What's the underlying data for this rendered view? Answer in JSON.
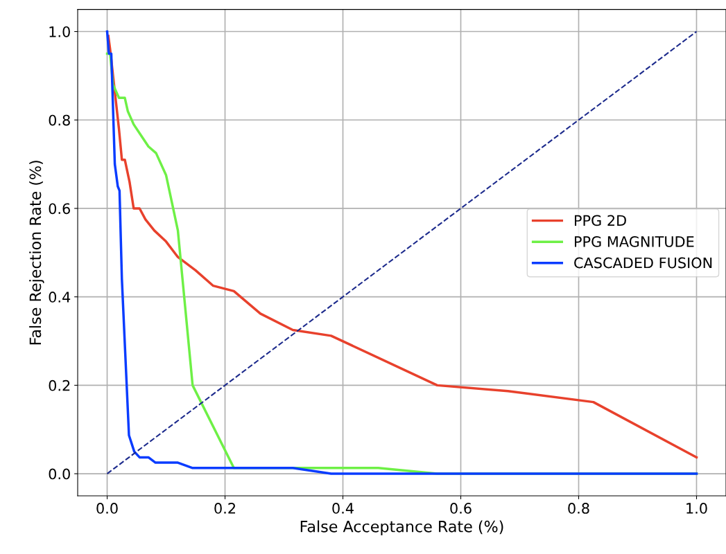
{
  "chart_data": {
    "type": "line",
    "xlabel": "False Acceptance Rate (%)",
    "ylabel": "False Rejection Rate (%)",
    "xlim": [
      -0.05,
      1.05
    ],
    "ylim": [
      -0.05,
      1.05
    ],
    "xticks": [
      {
        "value": 0,
        "label": "0.0"
      },
      0.2,
      0.4,
      0.6,
      0.8,
      {
        "value": 1,
        "label": "1.0"
      }
    ],
    "yticks": [
      {
        "value": 0,
        "label": "0.0"
      },
      0.2,
      0.4,
      0.6,
      0.8,
      {
        "value": 1,
        "label": "1.0"
      }
    ],
    "grid": true,
    "legend": "right",
    "line_style": "solid",
    "marker": "none",
    "series": [
      {
        "name": "PPG 2D",
        "color": "#e8412c",
        "x": [
          0.002,
          0.005,
          0.01,
          0.02,
          0.025,
          0.03,
          0.038,
          0.045,
          0.055,
          0.065,
          0.08,
          0.1,
          0.12,
          0.15,
          0.18,
          0.215,
          0.26,
          0.315,
          0.38,
          0.56,
          0.68,
          0.825,
          1.0
        ],
        "values": [
          0.99,
          0.96,
          0.9,
          0.78,
          0.71,
          0.71,
          0.66,
          0.6,
          0.6,
          0.575,
          0.55,
          0.525,
          0.49,
          0.46,
          0.425,
          0.413,
          0.362,
          0.325,
          0.312,
          0.2,
          0.187,
          0.162,
          0.037
        ]
      },
      {
        "name": "PPG MAGNITUDE",
        "color": "#6ef046",
        "x": [
          0,
          0.005,
          0.01,
          0.02,
          0.03,
          0.035,
          0.045,
          0.06,
          0.07,
          0.083,
          0.1,
          0.12,
          0.145,
          0.215,
          0.46,
          0.56,
          1.0
        ],
        "values": [
          0.95,
          0.95,
          0.88,
          0.85,
          0.85,
          0.82,
          0.79,
          0.76,
          0.74,
          0.725,
          0.675,
          0.55,
          0.2,
          0.013,
          0.013,
          0.0,
          0.0
        ]
      },
      {
        "name": "CASCADED FUSION",
        "color": "#0a3cff",
        "x": [
          0,
          0.003,
          0.007,
          0.013,
          0.018,
          0.021,
          0.025,
          0.037,
          0.046,
          0.055,
          0.07,
          0.082,
          0.12,
          0.145,
          0.315,
          0.38,
          1.0
        ],
        "values": [
          1.0,
          0.95,
          0.95,
          0.7,
          0.65,
          0.64,
          0.44,
          0.087,
          0.05,
          0.037,
          0.037,
          0.025,
          0.025,
          0.013,
          0.013,
          0.0,
          0.0
        ]
      },
      {
        "color": "#1c2a8c",
        "line_style": "dashed",
        "x": [
          0,
          1
        ],
        "values": [
          0,
          1
        ]
      }
    ]
  }
}
